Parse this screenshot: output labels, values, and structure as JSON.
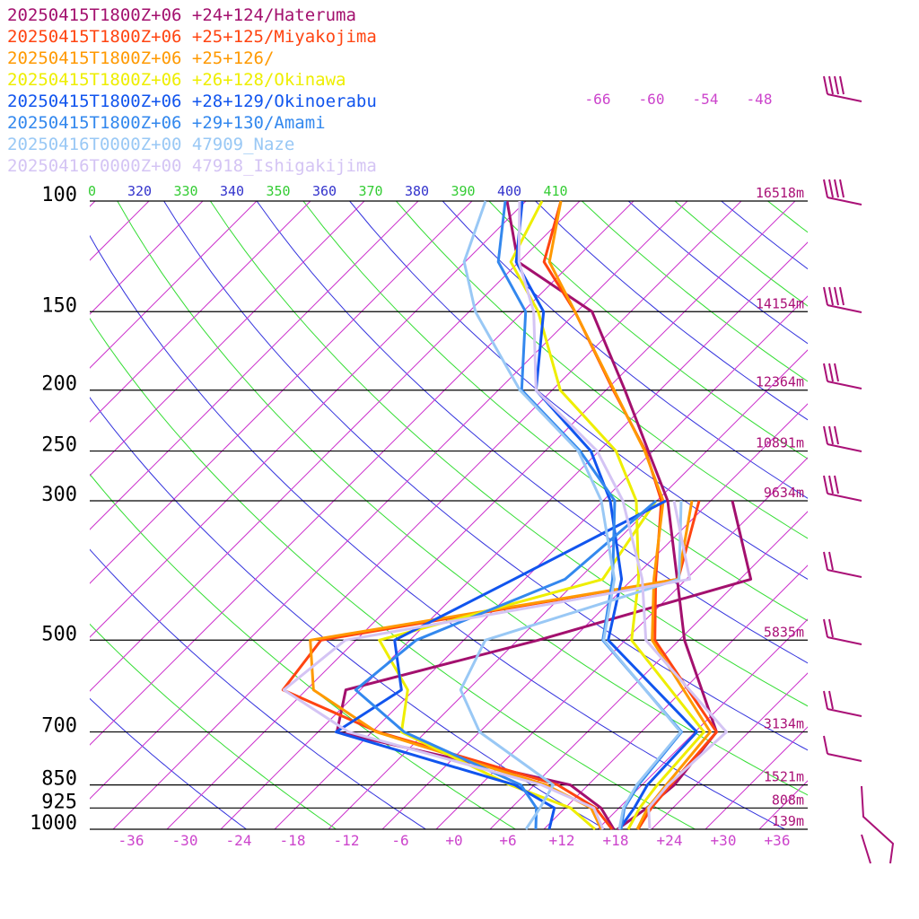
{
  "chart_data": {
    "type": "line",
    "title": "",
    "xlabel": "",
    "ylabel": "",
    "legend_placement": "top-left",
    "pressure_levels": [
      100,
      150,
      200,
      250,
      300,
      500,
      700,
      850,
      925,
      1000
    ],
    "pressure_labels": [
      "100",
      "150",
      "200",
      "250",
      "300",
      "500",
      "700",
      "850",
      "925",
      "1000"
    ],
    "height_labels": [
      {
        "p": 100,
        "label": "16518m"
      },
      {
        "p": 150,
        "label": "14154m"
      },
      {
        "p": 200,
        "label": "12364m"
      },
      {
        "p": 250,
        "label": "10891m"
      },
      {
        "p": 300,
        "label": "9634m"
      },
      {
        "p": 500,
        "label": "5835m"
      },
      {
        "p": 700,
        "label": "3134m"
      },
      {
        "p": 850,
        "label": "1521m"
      },
      {
        "p": 925,
        "label": "808m"
      },
      {
        "p": 1000,
        "label": "139m"
      }
    ],
    "temperature_ticks": [
      {
        "t": -36,
        "label": "-36"
      },
      {
        "t": -30,
        "label": "-30"
      },
      {
        "t": -24,
        "label": "-24"
      },
      {
        "t": -18,
        "label": "-18"
      },
      {
        "t": -12,
        "label": "-12"
      },
      {
        "t": -6,
        "label": "-6"
      },
      {
        "t": 0,
        "label": "+0"
      },
      {
        "t": 6,
        "label": "+6"
      },
      {
        "t": 12,
        "label": "+12"
      },
      {
        "t": 18,
        "label": "+18"
      },
      {
        "t": 24,
        "label": "+24"
      },
      {
        "t": 30,
        "label": "+30"
      },
      {
        "t": 36,
        "label": "+36"
      }
    ],
    "isotherm_labels_top": [
      "-66",
      "-60",
      "-54",
      "-48"
    ],
    "theta_labels": [
      {
        "label": "0",
        "color": "green"
      },
      {
        "label": "320",
        "color": "blue"
      },
      {
        "label": "330",
        "color": "green"
      },
      {
        "label": "340",
        "color": "blue"
      },
      {
        "label": "350",
        "color": "green"
      },
      {
        "label": "360",
        "color": "blue"
      },
      {
        "label": "370",
        "color": "green"
      },
      {
        "label": "380",
        "color": "blue"
      },
      {
        "label": "390",
        "color": "green"
      },
      {
        "label": "400",
        "color": "blue"
      },
      {
        "label": "410",
        "color": "green"
      }
    ],
    "colors": {
      "isotherm": "#cc33cc",
      "dry_adiabat_blue": "#3333dd",
      "dry_adiabat_green": "#33dd33",
      "isobar": "#000000",
      "tick_text": "#cc44cc",
      "wind_barb": "#aa1177"
    },
    "series": [
      {
        "name": "20250415T1800Z+06 +24+124/Hateruma",
        "color": "#a3106e",
        "temperature": [
          [
            1000,
            18.2
          ],
          [
            925,
            19.1
          ],
          [
            850,
            19.6
          ],
          [
            700,
            18.4
          ],
          [
            500,
            4.6
          ],
          [
            400,
            -3.0
          ],
          [
            300,
            -12.8
          ],
          [
            250,
            -20.5
          ],
          [
            200,
            -29.9
          ],
          [
            150,
            -42.3
          ],
          [
            125,
            -56.1
          ],
          [
            100,
            -64.1
          ]
        ],
        "dewpoint": [
          [
            1000,
            17.8
          ],
          [
            925,
            14.0
          ],
          [
            850,
            8.0
          ],
          [
            700,
            -23.9
          ],
          [
            600,
            -27.6
          ],
          [
            500,
            -11.7
          ],
          [
            400,
            5.2
          ],
          [
            300,
            -5.6
          ]
        ]
      },
      {
        "name": "20250415T1800Z+06 +25+125/Miyakojima",
        "color": "#ff4411",
        "temperature": [
          [
            1000,
            20.5
          ],
          [
            925,
            19.6
          ],
          [
            850,
            19.2
          ],
          [
            700,
            18.4
          ],
          [
            500,
            1.3
          ],
          [
            400,
            -5.4
          ],
          [
            300,
            -13.5
          ],
          [
            250,
            -20.8
          ],
          [
            200,
            -31.2
          ],
          [
            150,
            -44.2
          ],
          [
            125,
            -53.2
          ],
          [
            100,
            -58.1
          ]
        ],
        "dewpoint": [
          [
            1000,
            17.6
          ],
          [
            925,
            13.4
          ],
          [
            850,
            6.6
          ],
          [
            700,
            -19.3
          ],
          [
            600,
            -34.6
          ],
          [
            500,
            -35.9
          ],
          [
            400,
            -2.9
          ],
          [
            300,
            -9.3
          ]
        ]
      },
      {
        "name": "20250415T1800Z+06 +25+126/",
        "color": "#ff9900",
        "temperature": [
          [
            1000,
            20.4
          ],
          [
            925,
            19.2
          ],
          [
            850,
            18.7
          ],
          [
            700,
            17.7
          ],
          [
            500,
            1.0
          ],
          [
            400,
            -5.6
          ],
          [
            300,
            -13.3
          ],
          [
            250,
            -20.9
          ],
          [
            200,
            -31.1
          ],
          [
            150,
            -44.2
          ],
          [
            125,
            -52.6
          ],
          [
            100,
            -58.1
          ]
        ],
        "dewpoint": [
          [
            1000,
            16.4
          ],
          [
            925,
            12.9
          ],
          [
            850,
            5.3
          ],
          [
            700,
            -19.5
          ],
          [
            600,
            -31.2
          ],
          [
            500,
            -37.1
          ],
          [
            400,
            -2.9
          ],
          [
            300,
            -10.1
          ]
        ]
      },
      {
        "name": "20250415T1800Z+06 +26+128/Okinawa",
        "color": "#eeee00",
        "temperature": [
          [
            1000,
            19.4
          ],
          [
            925,
            18.3
          ],
          [
            850,
            17.7
          ],
          [
            700,
            17.0
          ],
          [
            500,
            -1.3
          ],
          [
            400,
            -7.3
          ],
          [
            300,
            -16.3
          ],
          [
            250,
            -24.1
          ],
          [
            200,
            -37.1
          ],
          [
            150,
            -48.3
          ],
          [
            125,
            -56.9
          ],
          [
            100,
            -60.2
          ]
        ],
        "dewpoint": [
          [
            1000,
            15.7
          ],
          [
            925,
            10.6
          ],
          [
            850,
            1.3
          ],
          [
            700,
            -16.7
          ],
          [
            600,
            -20.7
          ],
          [
            500,
            -29.4
          ],
          [
            400,
            -11.3
          ],
          [
            300,
            -14.1
          ]
        ]
      },
      {
        "name": "20250415T1800Z+06 +28+129/Okinoerabu",
        "color": "#1155ee",
        "temperature": [
          [
            1000,
            18.4
          ],
          [
            925,
            17.7
          ],
          [
            850,
            16.6
          ],
          [
            700,
            16.2
          ],
          [
            500,
            -3.9
          ],
          [
            400,
            -9.2
          ],
          [
            300,
            -19.2
          ],
          [
            250,
            -26.9
          ],
          [
            200,
            -39.8
          ],
          [
            150,
            -47.7
          ],
          [
            125,
            -56.3
          ],
          [
            100,
            -62.4
          ]
        ],
        "dewpoint": [
          [
            1000,
            10.6
          ],
          [
            925,
            8.8
          ],
          [
            850,
            1.8
          ],
          [
            700,
            -24.0
          ],
          [
            600,
            -21.4
          ],
          [
            500,
            -27.7
          ],
          [
            400,
            -21.2
          ],
          [
            300,
            -13.0
          ]
        ]
      },
      {
        "name": "20250415T1800Z+06 +29+130/Amami",
        "color": "#3388ee",
        "temperature": [
          [
            1000,
            18.6
          ],
          [
            925,
            16.6
          ],
          [
            850,
            15.6
          ],
          [
            700,
            14.5
          ],
          [
            500,
            -4.5
          ],
          [
            400,
            -10.2
          ],
          [
            300,
            -18.7
          ],
          [
            250,
            -28.1
          ],
          [
            200,
            -41.4
          ],
          [
            150,
            -49.7
          ],
          [
            125,
            -58.3
          ],
          [
            100,
            -64.3
          ]
        ],
        "dewpoint": [
          [
            1000,
            9.1
          ],
          [
            925,
            6.8
          ],
          [
            850,
            2.5
          ],
          [
            700,
            -16.4
          ],
          [
            600,
            -26.5
          ],
          [
            500,
            -25.3
          ],
          [
            400,
            -15.5
          ],
          [
            300,
            -14.1
          ]
        ]
      },
      {
        "name": "20250416T0000Z+00 47909_Naze",
        "color": "#99c8f5",
        "temperature": [
          [
            1000,
            18.4
          ],
          [
            925,
            16.5
          ],
          [
            850,
            15.4
          ],
          [
            700,
            14.4
          ],
          [
            500,
            -4.4
          ],
          [
            400,
            -10.0
          ],
          [
            300,
            -20.2
          ],
          [
            250,
            -28.3
          ],
          [
            200,
            -41.6
          ],
          [
            150,
            -55.3
          ],
          [
            125,
            -62.1
          ],
          [
            100,
            -66.5
          ]
        ],
        "dewpoint": [
          [
            1000,
            8.0
          ],
          [
            925,
            7.2
          ],
          [
            850,
            6.1
          ],
          [
            700,
            -8.0
          ],
          [
            600,
            -14.8
          ],
          [
            500,
            -17.6
          ],
          [
            400,
            -2.8
          ],
          [
            300,
            -11.3
          ]
        ]
      },
      {
        "name": "20250416T0000Z+00 47918_Ishigakijima",
        "color": "#d4c4f4",
        "temperature": [
          [
            1000,
            21.8
          ],
          [
            925,
            19.3
          ],
          [
            850,
            18.9
          ],
          [
            700,
            19.5
          ],
          [
            500,
            0.3
          ],
          [
            400,
            -6.9
          ],
          [
            300,
            -17.8
          ],
          [
            250,
            -26.2
          ],
          [
            200,
            -39.8
          ],
          [
            150,
            -48.8
          ],
          [
            125,
            -56.0
          ],
          [
            100,
            -62.7
          ]
        ],
        "dewpoint": [
          [
            1000,
            16.6
          ],
          [
            925,
            13.2
          ],
          [
            850,
            4.8
          ],
          [
            700,
            -22.6
          ],
          [
            600,
            -34.5
          ],
          [
            500,
            -33.2
          ],
          [
            400,
            -1.6
          ],
          [
            300,
            -12.1
          ]
        ]
      }
    ]
  }
}
